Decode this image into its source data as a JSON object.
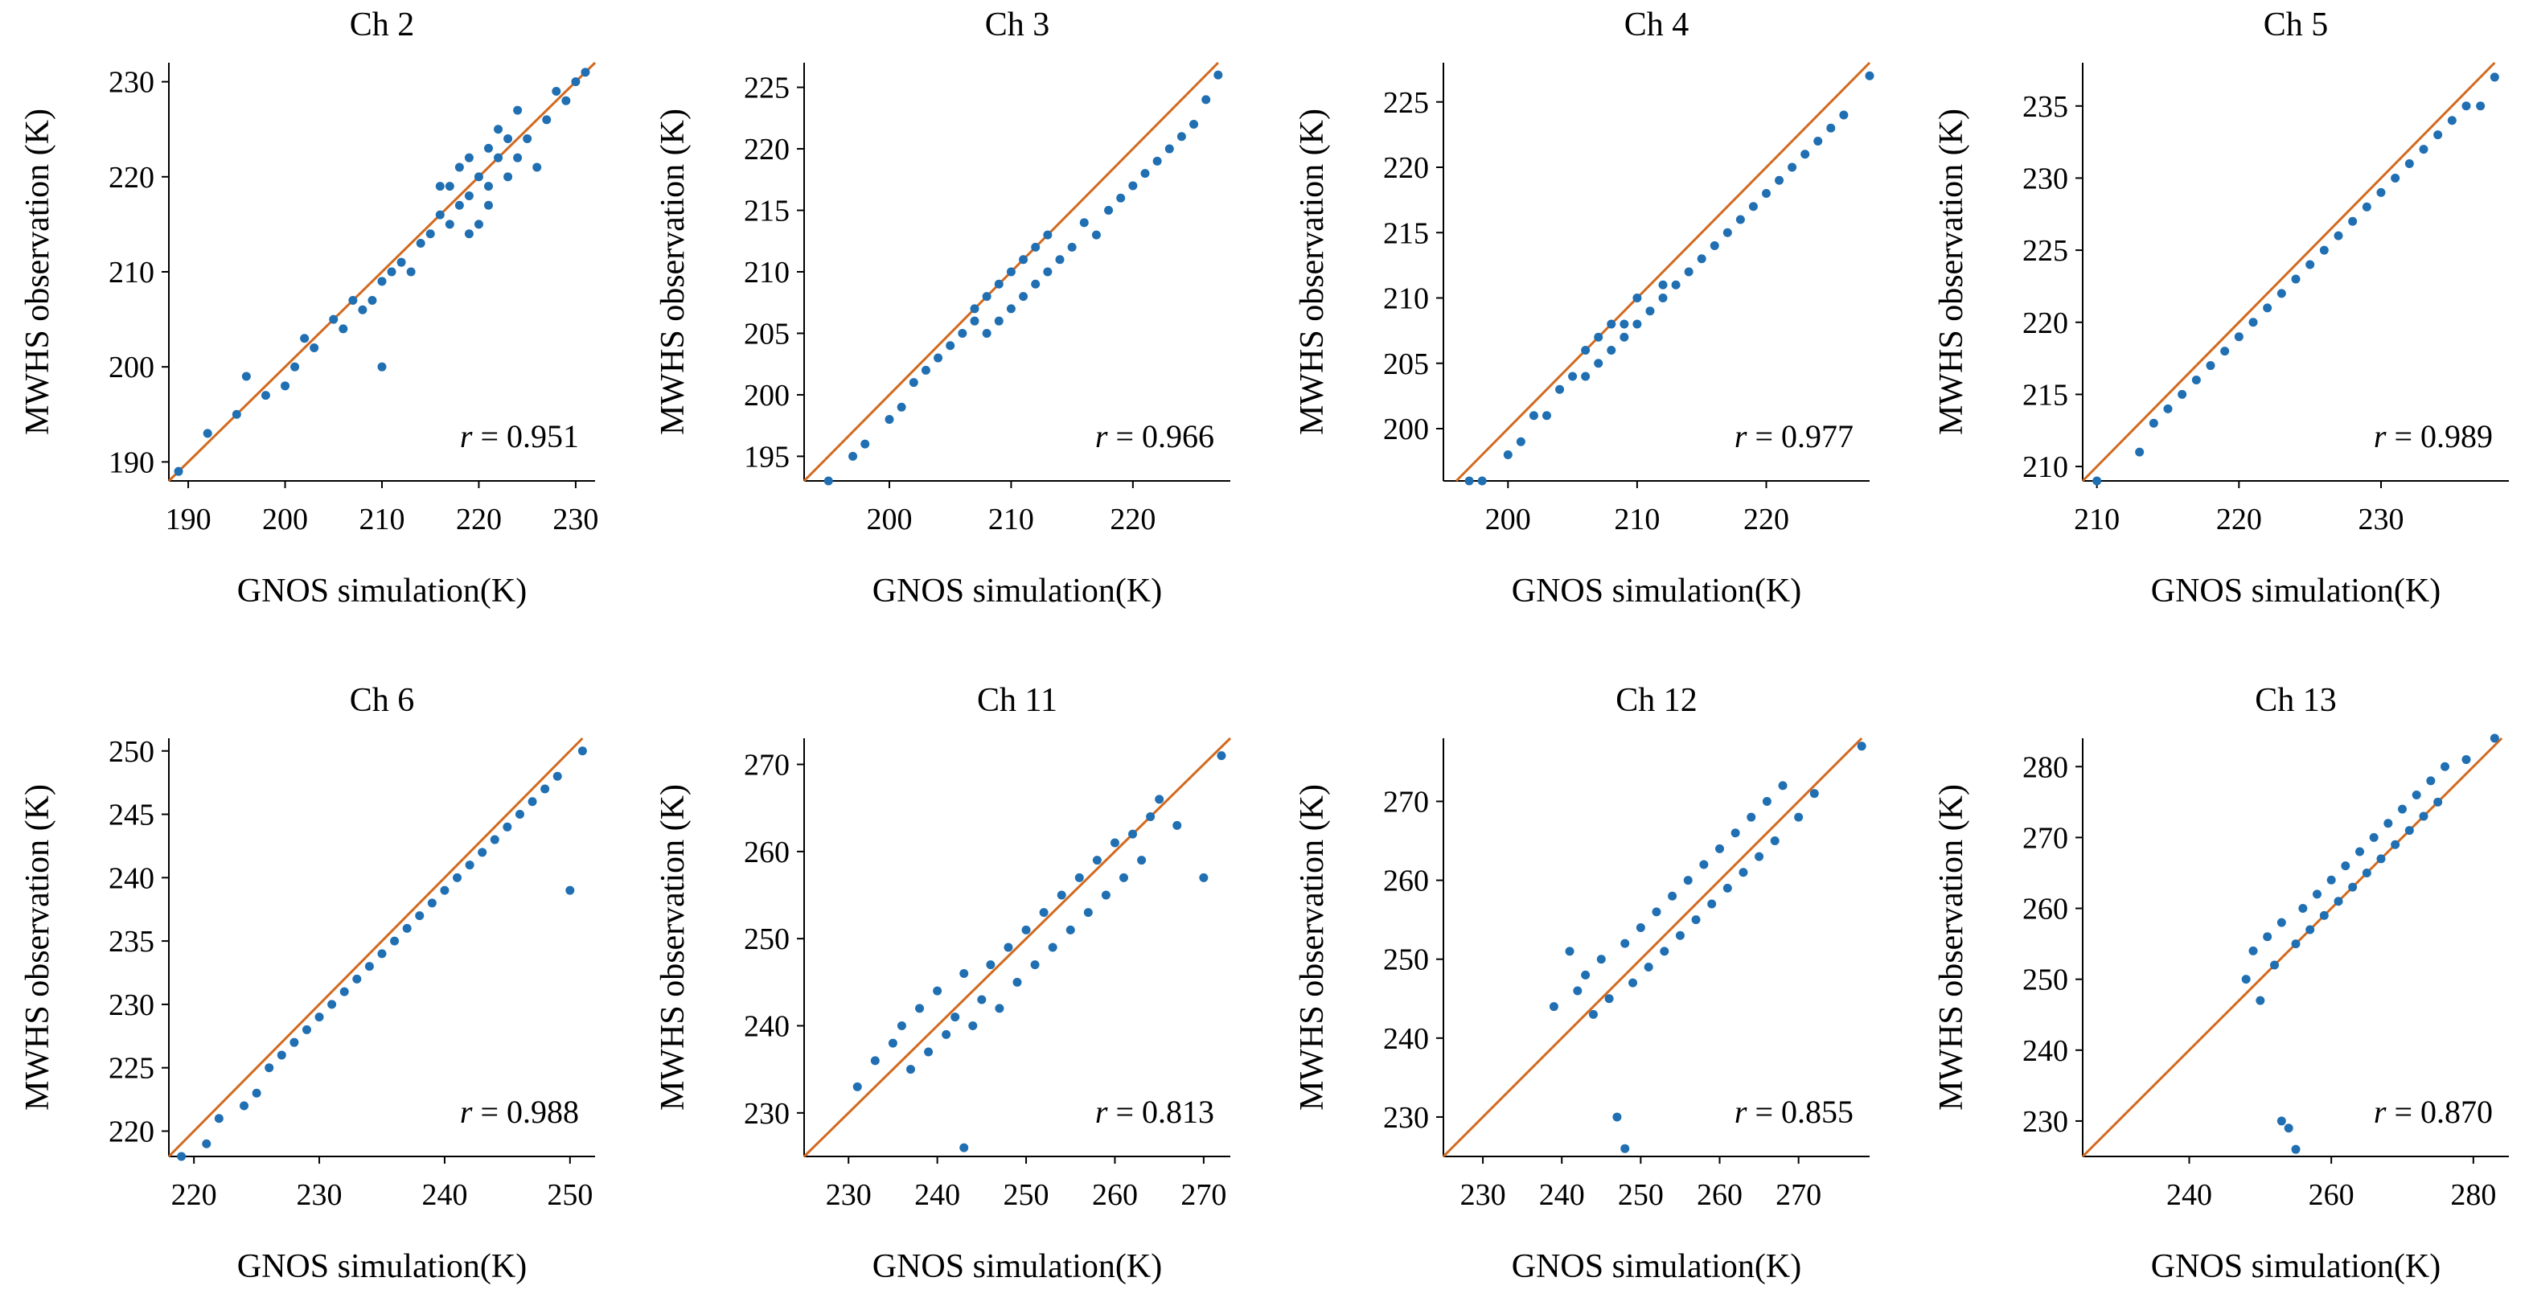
{
  "chart_data": [
    {
      "type": "scatter",
      "title": "Ch 2",
      "xlabel": "GNOS simulation(K)",
      "ylabel": "MWHS observation (K)",
      "xlim": [
        188,
        232
      ],
      "ylim": [
        188,
        232
      ],
      "xticks": [
        190,
        200,
        210,
        220,
        230
      ],
      "yticks": [
        190,
        200,
        210,
        220,
        230
      ],
      "r_label": "r",
      "r_value": "= 0.951",
      "grid": false,
      "point_color": "#1f6fb2",
      "line_color": "#d2691e",
      "identity_line": true,
      "x": [
        189,
        192,
        195,
        196,
        198,
        200,
        201,
        202,
        203,
        205,
        206,
        207,
        208,
        209,
        210,
        210,
        211,
        212,
        213,
        214,
        215,
        216,
        216,
        217,
        217,
        218,
        218,
        219,
        219,
        219,
        220,
        220,
        221,
        221,
        221,
        222,
        222,
        223,
        223,
        224,
        224,
        225,
        226,
        227,
        228,
        229,
        230,
        231
      ],
      "y": [
        189,
        193,
        195,
        199,
        197,
        198,
        200,
        203,
        202,
        205,
        204,
        207,
        206,
        207,
        200,
        209,
        210,
        211,
        210,
        213,
        214,
        216,
        219,
        215,
        219,
        217,
        221,
        214,
        218,
        222,
        215,
        220,
        219,
        223,
        217,
        222,
        225,
        220,
        224,
        222,
        227,
        224,
        221,
        226,
        229,
        228,
        230,
        231
      ]
    },
    {
      "type": "scatter",
      "title": "Ch 3",
      "xlabel": "GNOS simulation(K)",
      "ylabel": "MWHS observation (K)",
      "xlim": [
        193,
        228
      ],
      "ylim": [
        193,
        227
      ],
      "xticks": [
        200,
        210,
        220
      ],
      "yticks": [
        195,
        200,
        205,
        210,
        215,
        220,
        225
      ],
      "r_label": "r",
      "r_value": "= 0.966",
      "grid": false,
      "point_color": "#1f6fb2",
      "line_color": "#d2691e",
      "identity_line": true,
      "x": [
        195,
        197,
        198,
        200,
        201,
        202,
        203,
        204,
        205,
        206,
        207,
        207,
        208,
        208,
        209,
        209,
        210,
        210,
        211,
        211,
        212,
        212,
        213,
        213,
        214,
        215,
        216,
        217,
        218,
        219,
        220,
        221,
        222,
        223,
        224,
        225,
        226,
        227
      ],
      "y": [
        193,
        195,
        196,
        198,
        199,
        201,
        202,
        203,
        204,
        205,
        206,
        207,
        205,
        208,
        206,
        209,
        207,
        210,
        208,
        211,
        209,
        212,
        210,
        213,
        211,
        212,
        214,
        213,
        215,
        216,
        217,
        218,
        219,
        220,
        221,
        222,
        224,
        226
      ]
    },
    {
      "type": "scatter",
      "title": "Ch 4",
      "xlabel": "GNOS simulation(K)",
      "ylabel": "MWHS observation (K)",
      "xlim": [
        195,
        228
      ],
      "ylim": [
        196,
        228
      ],
      "xticks": [
        200,
        210,
        220
      ],
      "yticks": [
        200,
        205,
        210,
        215,
        220,
        225
      ],
      "r_label": "r",
      "r_value": "= 0.977",
      "grid": false,
      "point_color": "#1f6fb2",
      "line_color": "#d2691e",
      "identity_line": true,
      "x": [
        197,
        198,
        200,
        201,
        202,
        203,
        204,
        205,
        206,
        206,
        207,
        207,
        208,
        208,
        209,
        209,
        210,
        210,
        211,
        212,
        212,
        213,
        214,
        215,
        216,
        217,
        218,
        219,
        220,
        221,
        222,
        223,
        224,
        225,
        226,
        228
      ],
      "y": [
        196,
        196,
        198,
        199,
        201,
        201,
        203,
        204,
        204,
        206,
        205,
        207,
        206,
        208,
        207,
        208,
        208,
        210,
        209,
        210,
        211,
        211,
        212,
        213,
        214,
        215,
        216,
        217,
        218,
        219,
        220,
        221,
        222,
        223,
        224,
        227
      ]
    },
    {
      "type": "scatter",
      "title": "Ch 5",
      "xlabel": "GNOS simulation(K)",
      "ylabel": "MWHS observation (K)",
      "xlim": [
        209,
        239
      ],
      "ylim": [
        209,
        238
      ],
      "xticks": [
        210,
        220,
        230
      ],
      "yticks": [
        210,
        215,
        220,
        225,
        230,
        235
      ],
      "r_label": "r",
      "r_value": "= 0.989",
      "grid": false,
      "point_color": "#1f6fb2",
      "line_color": "#d2691e",
      "identity_line": true,
      "x": [
        210,
        213,
        214,
        215,
        216,
        217,
        218,
        219,
        220,
        221,
        222,
        223,
        224,
        225,
        226,
        227,
        228,
        229,
        230,
        231,
        232,
        233,
        234,
        235,
        236,
        237,
        238
      ],
      "y": [
        209,
        211,
        213,
        214,
        215,
        216,
        217,
        218,
        219,
        220,
        221,
        222,
        223,
        224,
        225,
        226,
        227,
        228,
        229,
        230,
        231,
        232,
        233,
        234,
        235,
        235,
        237
      ]
    },
    {
      "type": "scatter",
      "title": "Ch 6",
      "xlabel": "GNOS simulation(K)",
      "ylabel": "MWHS observation (K)",
      "xlim": [
        218,
        252
      ],
      "ylim": [
        218,
        251
      ],
      "xticks": [
        220,
        230,
        240,
        250
      ],
      "yticks": [
        220,
        225,
        230,
        235,
        240,
        245,
        250
      ],
      "r_label": "r",
      "r_value": "= 0.988",
      "grid": false,
      "point_color": "#1f6fb2",
      "line_color": "#d2691e",
      "identity_line": true,
      "x": [
        219,
        221,
        222,
        224,
        225,
        226,
        227,
        228,
        229,
        230,
        231,
        232,
        233,
        234,
        235,
        236,
        237,
        238,
        239,
        240,
        241,
        242,
        243,
        244,
        245,
        246,
        247,
        248,
        249,
        250,
        251
      ],
      "y": [
        218,
        219,
        221,
        222,
        223,
        225,
        226,
        227,
        228,
        229,
        230,
        231,
        232,
        233,
        234,
        235,
        236,
        237,
        238,
        239,
        240,
        241,
        242,
        243,
        244,
        245,
        246,
        247,
        248,
        239,
        250
      ]
    },
    {
      "type": "scatter",
      "title": "Ch 11",
      "xlabel": "GNOS simulation(K)",
      "ylabel": "MWHS observation (K)",
      "xlim": [
        225,
        273
      ],
      "ylim": [
        225,
        273
      ],
      "xticks": [
        230,
        240,
        250,
        260,
        270
      ],
      "yticks": [
        230,
        240,
        250,
        260,
        270
      ],
      "r_label": "r",
      "r_value": "= 0.813",
      "grid": false,
      "point_color": "#1f6fb2",
      "line_color": "#d2691e",
      "identity_line": true,
      "x": [
        231,
        233,
        235,
        236,
        237,
        238,
        239,
        240,
        241,
        242,
        243,
        243,
        244,
        245,
        246,
        247,
        248,
        249,
        250,
        251,
        252,
        253,
        254,
        255,
        256,
        257,
        258,
        259,
        260,
        261,
        262,
        263,
        264,
        265,
        267,
        270,
        272
      ],
      "y": [
        233,
        236,
        238,
        240,
        235,
        242,
        237,
        244,
        239,
        241,
        226,
        246,
        240,
        243,
        247,
        242,
        249,
        245,
        251,
        247,
        253,
        249,
        255,
        251,
        257,
        253,
        259,
        255,
        261,
        257,
        262,
        259,
        264,
        266,
        263,
        257,
        271
      ]
    },
    {
      "type": "scatter",
      "title": "Ch 12",
      "xlabel": "GNOS simulation(K)",
      "ylabel": "MWHS observation (K)",
      "xlim": [
        225,
        279
      ],
      "ylim": [
        225,
        278
      ],
      "xticks": [
        230,
        240,
        250,
        260,
        270
      ],
      "yticks": [
        230,
        240,
        250,
        260,
        270
      ],
      "r_label": "r",
      "r_value": "= 0.855",
      "grid": false,
      "point_color": "#1f6fb2",
      "line_color": "#d2691e",
      "identity_line": true,
      "x": [
        239,
        241,
        242,
        243,
        244,
        245,
        246,
        247,
        248,
        248,
        249,
        250,
        251,
        252,
        253,
        254,
        255,
        256,
        257,
        258,
        259,
        260,
        261,
        262,
        263,
        264,
        265,
        266,
        267,
        268,
        270,
        272,
        278
      ],
      "y": [
        244,
        251,
        246,
        248,
        243,
        250,
        245,
        230,
        252,
        226,
        247,
        254,
        249,
        256,
        251,
        258,
        253,
        260,
        255,
        262,
        257,
        264,
        259,
        266,
        261,
        268,
        263,
        270,
        265,
        272,
        268,
        271,
        277
      ]
    },
    {
      "type": "scatter",
      "title": "Ch 13",
      "xlabel": "GNOS simulation(K)",
      "ylabel": "MWHS observation (K)",
      "xlim": [
        225,
        285
      ],
      "ylim": [
        225,
        284
      ],
      "xticks": [
        240,
        260,
        280
      ],
      "yticks": [
        230,
        240,
        250,
        260,
        270,
        280
      ],
      "r_label": "r",
      "r_value": "= 0.870",
      "grid": false,
      "point_color": "#1f6fb2",
      "line_color": "#d2691e",
      "identity_line": true,
      "x": [
        248,
        249,
        250,
        251,
        252,
        253,
        253,
        254,
        255,
        255,
        256,
        257,
        258,
        259,
        260,
        261,
        262,
        263,
        264,
        265,
        266,
        267,
        268,
        269,
        270,
        271,
        272,
        273,
        274,
        275,
        276,
        279,
        283
      ],
      "y": [
        250,
        254,
        247,
        256,
        252,
        230,
        258,
        229,
        255,
        226,
        260,
        257,
        262,
        259,
        264,
        261,
        266,
        263,
        268,
        265,
        270,
        267,
        272,
        269,
        274,
        271,
        276,
        273,
        278,
        275,
        280,
        281,
        284
      ]
    }
  ]
}
